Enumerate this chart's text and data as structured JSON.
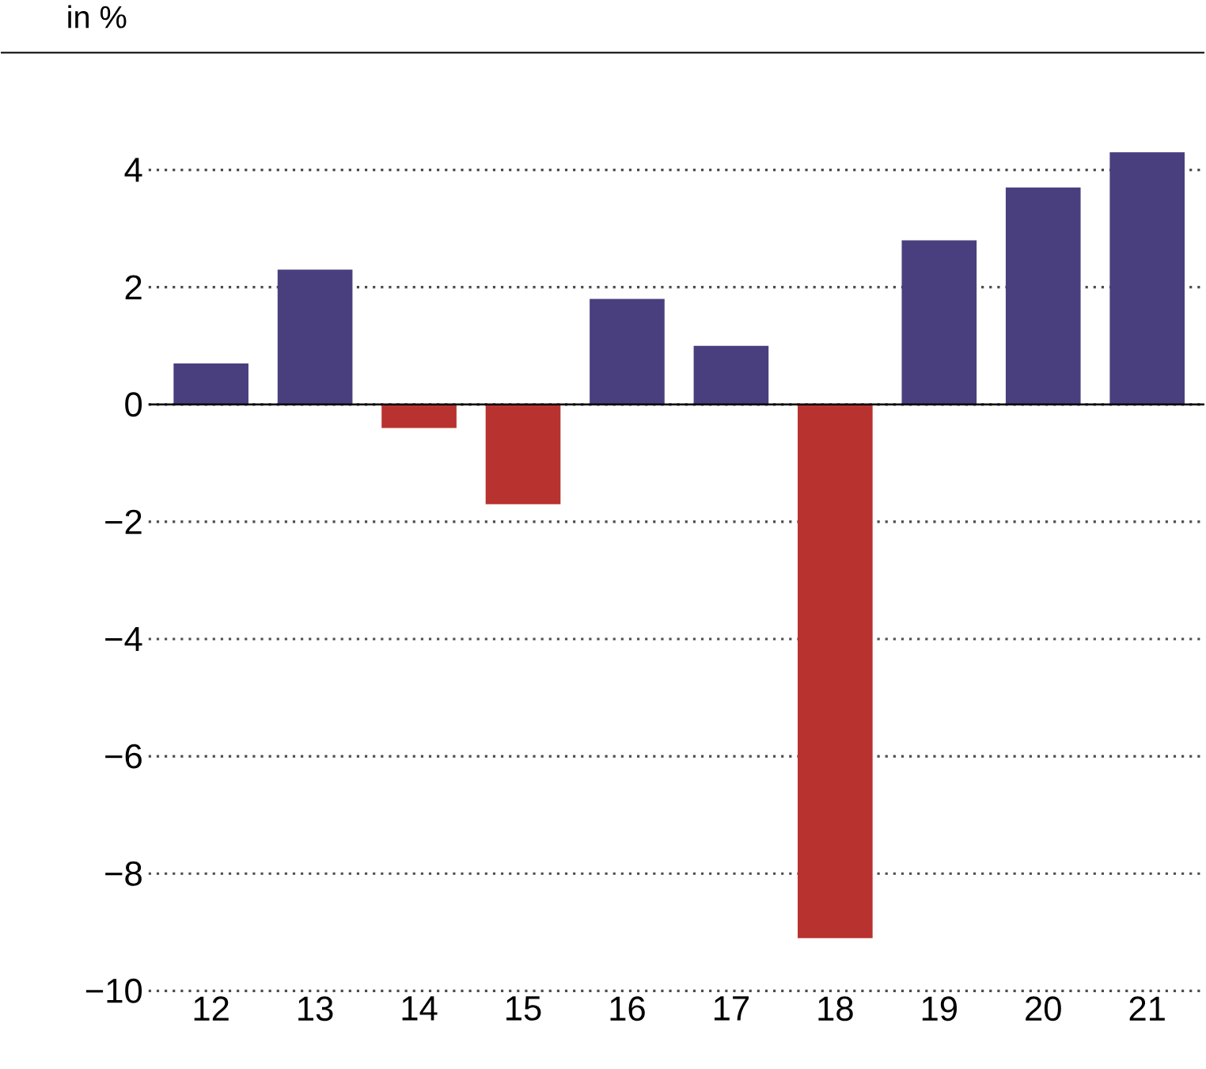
{
  "chart_data": {
    "type": "bar",
    "ylabel": "in %",
    "categories": [
      "12",
      "13",
      "14",
      "15",
      "16",
      "17",
      "18",
      "19",
      "20",
      "21"
    ],
    "values": [
      0.7,
      2.3,
      -0.4,
      -1.7,
      1.8,
      1.0,
      -9.1,
      2.8,
      3.7,
      4.3
    ],
    "colors": [
      "#4a3f7e",
      "#4a3f7e",
      "#b8322f",
      "#b8322f",
      "#4a3f7e",
      "#4a3f7e",
      "#b8322f",
      "#4a3f7e",
      "#4a3f7e",
      "#4a3f7e"
    ],
    "ylim": [
      -10,
      6
    ],
    "ref_lines": [
      {
        "axis": "y",
        "value": 0,
        "color": "#000000"
      }
    ],
    "yticks": [
      {
        "value": -10,
        "label": "−10"
      },
      {
        "value": -8,
        "label": "−8"
      },
      {
        "value": -6,
        "label": "−6"
      },
      {
        "value": -4,
        "label": "−4"
      },
      {
        "value": -2,
        "label": "−2"
      },
      0,
      2,
      4
    ],
    "grid": "y"
  }
}
